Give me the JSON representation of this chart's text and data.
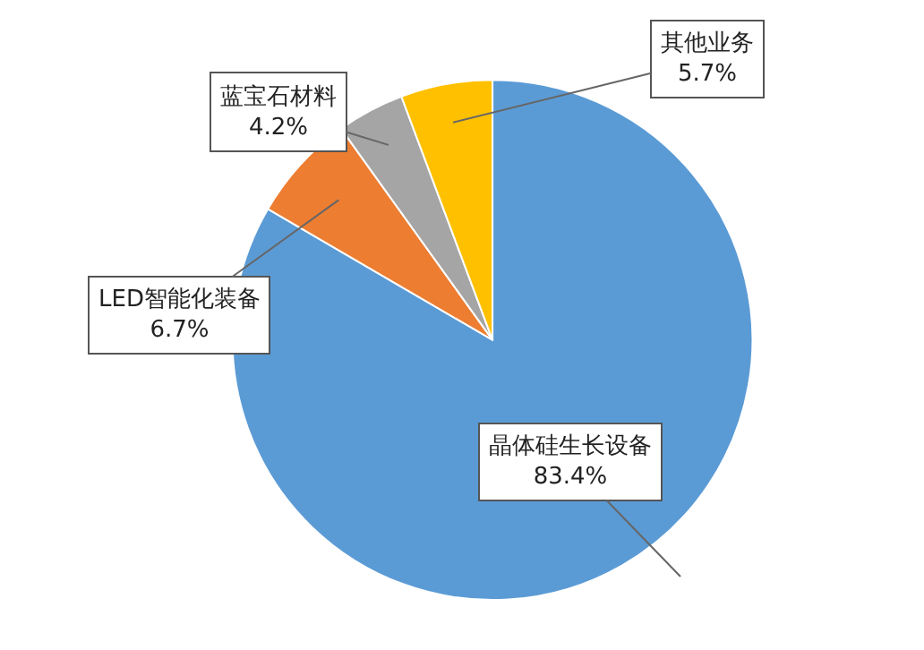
{
  "chart_data": {
    "type": "pie",
    "categories": [
      "晶体硅生长设备",
      "LED智能化装备",
      "蓝宝石材料",
      "其他业务"
    ],
    "values": [
      83.4,
      6.7,
      4.2,
      5.7
    ],
    "value_labels": [
      "83.4%",
      "6.7%",
      "4.2%",
      "5.7%"
    ],
    "colors": [
      "#5b9bd5",
      "#ed7d31",
      "#a5a5a5",
      "#ffc000"
    ],
    "legend": false
  }
}
